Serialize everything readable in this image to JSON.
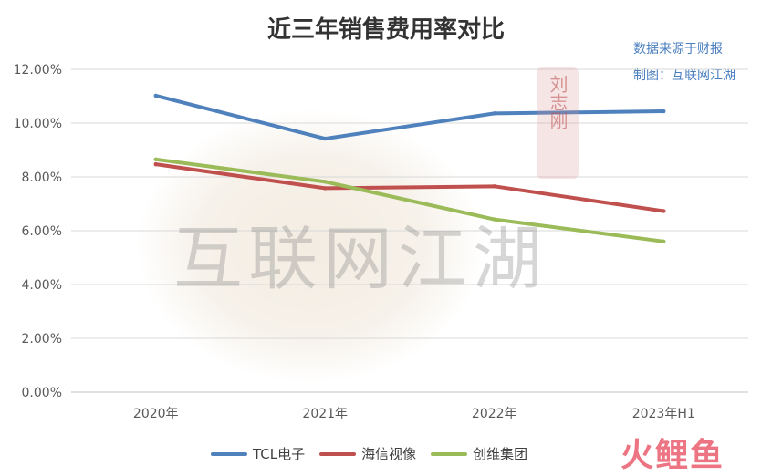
{
  "title": "近三年销售费用率对比",
  "source_note": {
    "line1": "数据来源于财报",
    "line2": "制图：互联网江湖"
  },
  "watermark": {
    "text": "互联网江湖",
    "seal_text": "刘志刚"
  },
  "corner_logo": "火鲤鱼",
  "colors": {
    "tcl": "#4f81bd",
    "hisense": "#c0504d",
    "skyworth": "#9bbb59",
    "grid": "#d9d9d9",
    "axis_text": "#595959"
  },
  "chart_data": {
    "type": "line",
    "title": "近三年销售费用率对比",
    "categories": [
      "2020年",
      "2021年",
      "2022年",
      "2023年H1"
    ],
    "series": [
      {
        "name": "TCL电子",
        "color": "#4f81bd",
        "values": [
          11.02,
          9.42,
          10.36,
          10.44
        ]
      },
      {
        "name": "海信视像",
        "color": "#c0504d",
        "values": [
          8.47,
          7.58,
          7.65,
          6.73
        ]
      },
      {
        "name": "创维集团",
        "color": "#9bbb59",
        "values": [
          8.65,
          7.82,
          6.42,
          5.6
        ]
      }
    ],
    "y_ticks": [
      "0.00%",
      "2.00%",
      "4.00%",
      "6.00%",
      "8.00%",
      "10.00%",
      "12.00%"
    ],
    "ylim": [
      0,
      12
    ],
    "unit": "%",
    "grid": true,
    "legend_position": "bottom"
  }
}
